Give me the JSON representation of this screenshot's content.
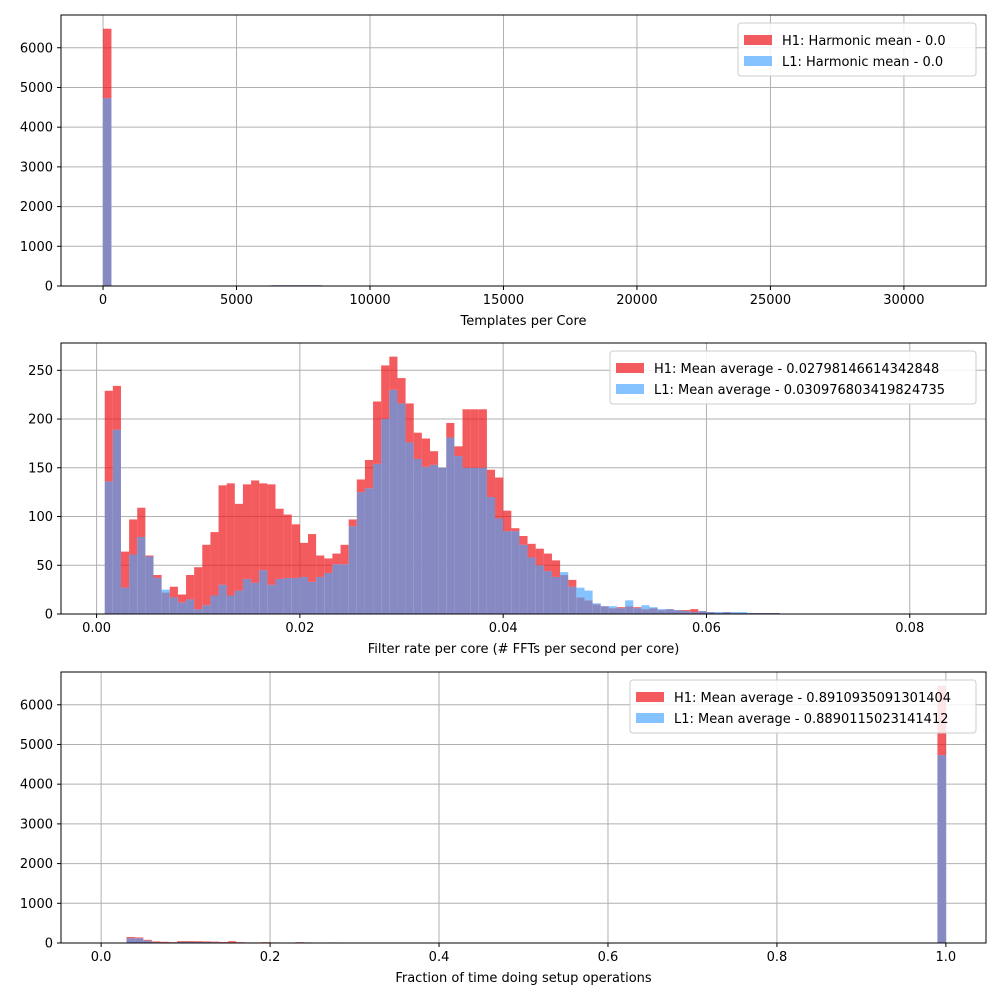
{
  "colors": {
    "h1": "#f0161a",
    "l1": "#50aaff",
    "overlap": "#8789c3",
    "grid": "#b0b0b0"
  },
  "chart_data": [
    {
      "type": "bar",
      "xlabel": "Templates per Core",
      "xlim": [
        -1575,
        33075
      ],
      "ylim": [
        0,
        6825
      ],
      "xticks": [
        0,
        5000,
        10000,
        15000,
        20000,
        25000,
        30000
      ],
      "yticks": [
        0,
        1000,
        2000,
        3000,
        4000,
        5000,
        6000
      ],
      "xtick_labels": [
        "0",
        "5000",
        "10000",
        "15000",
        "20000",
        "25000",
        "30000"
      ],
      "ytick_labels": [
        "0",
        "1000",
        "2000",
        "3000",
        "4000",
        "5000",
        "6000"
      ],
      "grid": true,
      "legend_position": "top-right",
      "bin_width": 315,
      "series": [
        {
          "name": "H1: Harmonic mean  - 0.0",
          "bins": [
            [
              0,
              6480
            ],
            [
              1890,
              5
            ],
            [
              2205,
              5
            ],
            [
              2520,
              5
            ],
            [
              2835,
              5
            ],
            [
              3150,
              5
            ],
            [
              3465,
              5
            ],
            [
              3780,
              5
            ],
            [
              4095,
              5
            ],
            [
              4410,
              5
            ],
            [
              4725,
              5
            ],
            [
              5040,
              5
            ],
            [
              5355,
              5
            ],
            [
              5670,
              5
            ],
            [
              6300,
              20
            ],
            [
              6615,
              20
            ],
            [
              6930,
              20
            ],
            [
              7245,
              20
            ],
            [
              7560,
              20
            ],
            [
              7875,
              20
            ],
            [
              8190,
              10
            ],
            [
              8505,
              10
            ],
            [
              8820,
              10
            ],
            [
              9135,
              10
            ],
            [
              9450,
              10
            ],
            [
              9765,
              10
            ]
          ]
        },
        {
          "name": "L1: Harmonic mean  - 0.0",
          "bins": [
            [
              0,
              4730
            ],
            [
              6300,
              20
            ],
            [
              6615,
              20
            ],
            [
              6930,
              20
            ],
            [
              7245,
              20
            ],
            [
              7560,
              20
            ],
            [
              7875,
              20
            ]
          ]
        }
      ]
    },
    {
      "type": "bar",
      "xlabel": "Filter rate per core (# FFTs per second per core)",
      "xlim": [
        -0.0035,
        0.0875
      ],
      "ylim": [
        0,
        278
      ],
      "xticks": [
        0,
        0.02,
        0.04,
        0.06,
        0.08
      ],
      "yticks": [
        0,
        50,
        100,
        150,
        200,
        250
      ],
      "xtick_labels": [
        "0.00",
        "0.02",
        "0.04",
        "0.06",
        "0.08"
      ],
      "ytick_labels": [
        "0",
        "50",
        "100",
        "150",
        "200",
        "250"
      ],
      "grid": true,
      "legend_position": "top-right",
      "x_start": 0.0008,
      "bin_width": 0.0008,
      "series": [
        {
          "name": "H1: Mean average - 0.02798146614342848",
          "values": [
            229,
            234,
            64,
            97,
            109,
            60,
            40,
            22,
            28,
            20,
            40,
            48,
            71,
            84,
            132,
            134,
            113,
            133,
            137,
            134,
            133,
            108,
            102,
            92,
            73,
            82,
            60,
            57,
            62,
            71,
            97,
            138,
            158,
            218,
            255,
            264,
            242,
            216,
            186,
            180,
            167,
            150,
            196,
            172,
            210,
            210,
            210,
            148,
            140,
            106,
            88,
            80,
            72,
            67,
            62,
            55,
            40,
            35,
            17,
            14,
            10,
            8,
            6,
            7,
            8,
            7,
            5,
            6,
            4,
            5,
            4,
            4,
            5,
            3,
            2,
            1,
            2,
            1,
            1,
            1,
            1,
            1,
            1
          ]
        },
        {
          "name": "L1: Mean average - 0.030976803419824735",
          "values": [
            136,
            189,
            27,
            61,
            79,
            59,
            37,
            25,
            17,
            12,
            15,
            5,
            9,
            19,
            30,
            19,
            24,
            36,
            32,
            45,
            30,
            36,
            37,
            37,
            38,
            33,
            38,
            42,
            51,
            51,
            90,
            125,
            129,
            154,
            200,
            230,
            216,
            176,
            159,
            151,
            153,
            150,
            181,
            162,
            150,
            150,
            150,
            120,
            98,
            85,
            85,
            71,
            58,
            50,
            44,
            38,
            43,
            28,
            27,
            24,
            11,
            8,
            8,
            6,
            14,
            6,
            9,
            7,
            5,
            5,
            4,
            3,
            2,
            3,
            2,
            2,
            2,
            2,
            2,
            1,
            1,
            1,
            1
          ]
        }
      ]
    },
    {
      "type": "bar",
      "xlabel": "Fraction of time doing setup operations",
      "xlim": [
        -0.0475,
        1.0475
      ],
      "ylim": [
        0,
        6825
      ],
      "xticks": [
        0,
        0.2,
        0.4,
        0.6,
        0.8,
        1.0
      ],
      "yticks": [
        0,
        1000,
        2000,
        3000,
        4000,
        5000,
        6000
      ],
      "xtick_labels": [
        "0.0",
        "0.2",
        "0.4",
        "0.6",
        "0.8",
        "1.0"
      ],
      "ytick_labels": [
        "0",
        "1000",
        "2000",
        "3000",
        "4000",
        "5000",
        "6000"
      ],
      "grid": true,
      "legend_position": "top-right",
      "bin_width": 0.01,
      "series": [
        {
          "name": "H1: Mean average - 0.8910935091301404",
          "bins": [
            [
              0.02,
              10
            ],
            [
              0.03,
              150
            ],
            [
              0.04,
              140
            ],
            [
              0.05,
              80
            ],
            [
              0.06,
              40
            ],
            [
              0.07,
              30
            ],
            [
              0.08,
              20
            ],
            [
              0.09,
              50
            ],
            [
              0.1,
              50
            ],
            [
              0.11,
              45
            ],
            [
              0.12,
              40
            ],
            [
              0.13,
              35
            ],
            [
              0.14,
              25
            ],
            [
              0.15,
              45
            ],
            [
              0.16,
              20
            ],
            [
              0.17,
              15
            ],
            [
              0.18,
              15
            ],
            [
              0.19,
              20
            ],
            [
              0.2,
              15
            ],
            [
              0.21,
              10
            ],
            [
              0.22,
              10
            ],
            [
              0.23,
              20
            ],
            [
              0.24,
              15
            ],
            [
              0.26,
              5
            ],
            [
              0.99,
              6480
            ]
          ]
        },
        {
          "name": "L1: Mean average - 0.8890115023141412",
          "bins": [
            [
              0.02,
              5
            ],
            [
              0.03,
              120
            ],
            [
              0.04,
              120
            ],
            [
              0.05,
              60
            ],
            [
              0.06,
              20
            ],
            [
              0.07,
              15
            ],
            [
              0.08,
              10
            ],
            [
              0.09,
              30
            ],
            [
              0.1,
              30
            ],
            [
              0.11,
              25
            ],
            [
              0.12,
              25
            ],
            [
              0.13,
              20
            ],
            [
              0.14,
              15
            ],
            [
              0.15,
              15
            ],
            [
              0.16,
              10
            ],
            [
              0.17,
              10
            ],
            [
              0.18,
              10
            ],
            [
              0.19,
              10
            ],
            [
              0.2,
              10
            ],
            [
              0.27,
              15
            ],
            [
              0.99,
              4730
            ]
          ]
        }
      ]
    }
  ]
}
